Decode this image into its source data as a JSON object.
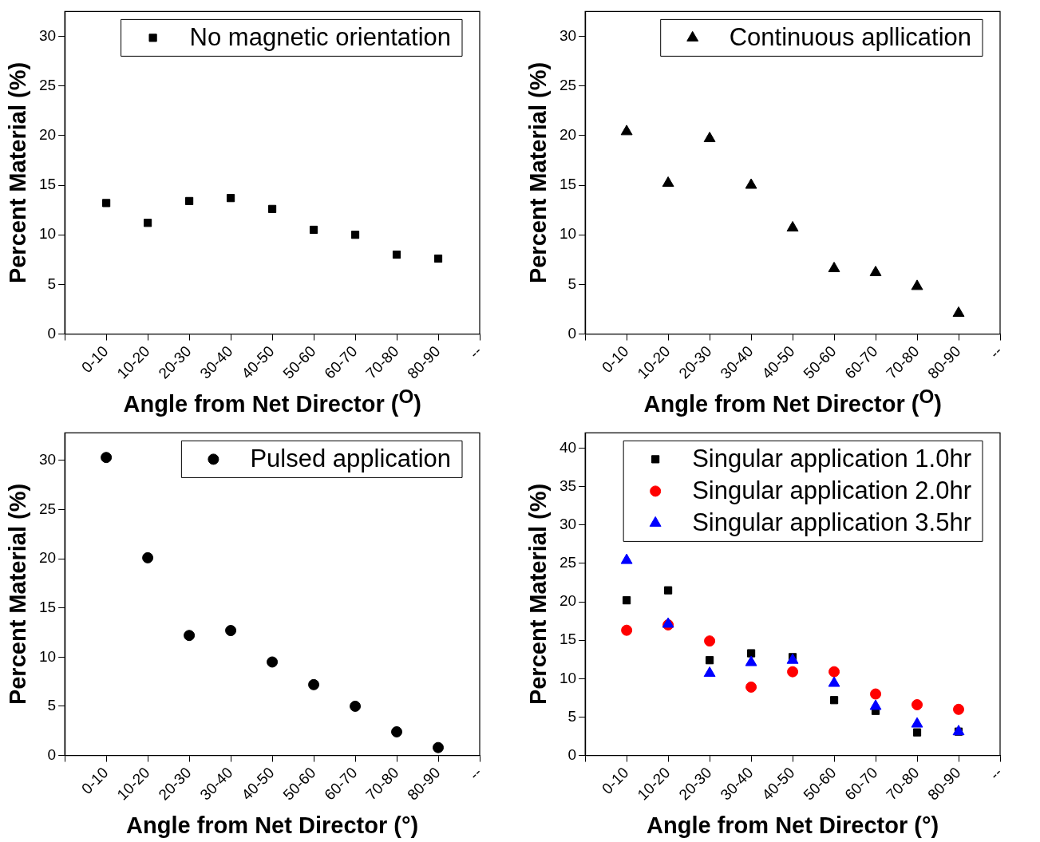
{
  "chart_data": [
    {
      "type": "scatter",
      "xlabel": "Angle from Net Director ($^{O}$)",
      "ylabel": "Percent Material (%)",
      "categories": [
        null,
        "0-10",
        "10-20",
        "20-30",
        "30-40",
        "40-50",
        "50-60",
        "60-70",
        "70-80",
        "80-90",
        "--"
      ],
      "ylim": [
        0,
        32.5
      ],
      "yticks": [
        0,
        5,
        10,
        15,
        20,
        25,
        30
      ],
      "legend": "top right",
      "series": [
        {
          "name": "No magnetic orientation",
          "color": "#000000",
          "marker": "square",
          "values": [
            null,
            13.2,
            11.2,
            13.4,
            13.7,
            12.6,
            10.5,
            10.0,
            8.0,
            7.6,
            null
          ]
        }
      ]
    },
    {
      "type": "scatter",
      "xlabel": "Angle from Net Director ($^{O}$)",
      "ylabel": "Percent Material (%)",
      "categories": [
        null,
        "0-10",
        "10-20",
        "20-30",
        "30-40",
        "40-50",
        "50-60",
        "60-70",
        "70-80",
        "80-90",
        "--"
      ],
      "ylim": [
        0,
        32.5
      ],
      "yticks": [
        0,
        5,
        10,
        15,
        20,
        25,
        30
      ],
      "legend": "top right",
      "series": [
        {
          "name": "Continuous apllication",
          "color": "#000000",
          "marker": "triangle",
          "values": [
            null,
            20.4,
            15.2,
            19.7,
            15.0,
            10.7,
            6.6,
            6.2,
            4.8,
            2.1,
            null
          ]
        }
      ]
    },
    {
      "type": "scatter",
      "xlabel": "Angle from Net Director (°)",
      "ylabel": "Percent Material (%)",
      "categories": [
        null,
        "0-10",
        "10-20",
        "20-30",
        "30-40",
        "40-50",
        "50-60",
        "60-70",
        "70-80",
        "80-90",
        "--"
      ],
      "ylim": [
        0,
        32.8
      ],
      "yticks": [
        0,
        5,
        10,
        15,
        20,
        25,
        30
      ],
      "legend": "top right",
      "series": [
        {
          "name": "Pulsed application",
          "color": "#000000",
          "marker": "circle",
          "values": [
            null,
            30.3,
            20.1,
            12.2,
            12.7,
            9.5,
            7.2,
            5.0,
            2.4,
            0.8,
            null
          ]
        }
      ]
    },
    {
      "type": "scatter",
      "xlabel": "Angle from Net Director (°)",
      "ylabel": "Percent Material (%)",
      "categories": [
        null,
        "0-10",
        "10-20",
        "20-30",
        "30-40",
        "40-50",
        "50-60",
        "60-70",
        "70-80",
        "80-90",
        "--"
      ],
      "ylim": [
        0,
        42
      ],
      "yticks": [
        0,
        5,
        10,
        15,
        20,
        25,
        30,
        35,
        40
      ],
      "legend": "top right",
      "series": [
        {
          "name": "Singular application 1.0hr",
          "color": "#000000",
          "marker": "square",
          "values": [
            null,
            20.2,
            21.5,
            12.4,
            13.3,
            12.8,
            7.2,
            5.8,
            3.0,
            3.1,
            null
          ]
        },
        {
          "name": "Singular application 2.0hr",
          "color": "#ff0000",
          "marker": "circle",
          "values": [
            null,
            16.3,
            17.0,
            14.9,
            8.9,
            10.9,
            10.9,
            8.0,
            6.6,
            6.0,
            null
          ]
        },
        {
          "name": "Singular application 3.5hr",
          "color": "#0000ff",
          "marker": "triangle",
          "values": [
            null,
            25.4,
            17.1,
            10.7,
            12.1,
            12.4,
            9.4,
            6.4,
            4.1,
            3.1,
            null
          ]
        }
      ]
    }
  ]
}
